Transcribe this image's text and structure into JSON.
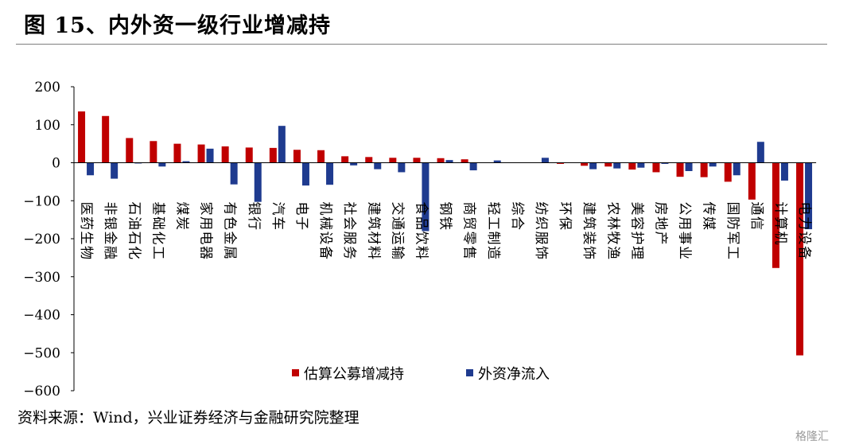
{
  "figure": {
    "title": "图 15、内外资一级行业增减持",
    "source": "资料来源：Wind，兴业证券经济与金融研究院整理",
    "watermark": "格隆汇"
  },
  "colors": {
    "domestic": "#c00000",
    "foreign": "#1f3b8f",
    "axis": "#000000"
  },
  "chart_data": {
    "type": "bar",
    "title": "",
    "xlabel": "",
    "ylabel": "",
    "ylim": [
      -600,
      200
    ],
    "yticks": [
      200,
      100,
      0,
      -100,
      -200,
      -300,
      -400,
      -500,
      -600
    ],
    "ytick_labels": [
      "200",
      "100",
      "0",
      "−100",
      "−200",
      "−300",
      "−400",
      "−500",
      "−600"
    ],
    "grid": false,
    "legend_position": "bottom-center",
    "categories": [
      "医药生物",
      "非银金融",
      "石油石化",
      "基础化工",
      "煤炭",
      "家用电器",
      "有色金属",
      "银行",
      "汽车",
      "电子",
      "机械设备",
      "社会服务",
      "建筑材料",
      "交通运输",
      "食品饮料",
      "钢铁",
      "商贸零售",
      "轻工制造",
      "综合",
      "纺织服饰",
      "环保",
      "建筑装饰",
      "农林牧渔",
      "美容护理",
      "房地产",
      "公用事业",
      "传媒",
      "国防军工",
      "通信",
      "计算机",
      "电力设备"
    ],
    "series": [
      {
        "name": "估算公募增减持",
        "color_key": "domestic",
        "values": [
          135,
          123,
          65,
          57,
          50,
          48,
          43,
          40,
          39,
          34,
          33,
          17,
          15,
          13,
          13,
          12,
          9,
          0,
          0,
          0,
          -3,
          -8,
          -10,
          -18,
          -25,
          -37,
          -38,
          -50,
          -97,
          -277,
          -507
        ]
      },
      {
        "name": "外资净流入",
        "color_key": "foreign",
        "values": [
          -33,
          -42,
          -2,
          -10,
          4,
          37,
          -57,
          -103,
          97,
          -60,
          -58,
          -7,
          -17,
          -25,
          -180,
          7,
          -20,
          6,
          0,
          13,
          0,
          -17,
          -15,
          -13,
          -3,
          -22,
          -10,
          -33,
          55,
          -47,
          -175
        ]
      }
    ]
  }
}
